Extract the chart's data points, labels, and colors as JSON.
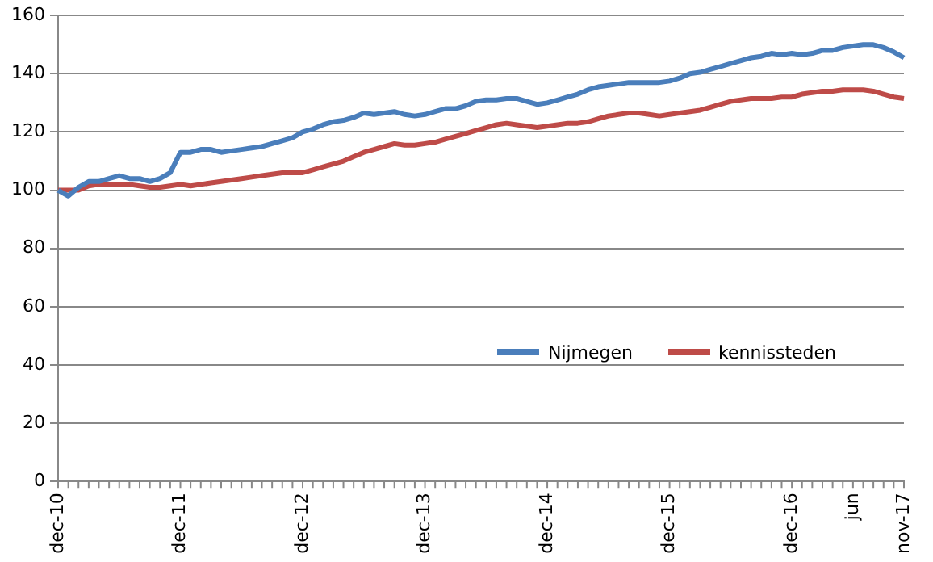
{
  "chart_data": {
    "type": "line",
    "categories": [
      "dec-10",
      null,
      null,
      null,
      null,
      null,
      null,
      null,
      null,
      null,
      null,
      null,
      "dec-11",
      null,
      null,
      null,
      null,
      null,
      null,
      null,
      null,
      null,
      null,
      null,
      "dec-12",
      null,
      null,
      null,
      null,
      null,
      null,
      null,
      null,
      null,
      null,
      null,
      "dec-13",
      null,
      null,
      null,
      null,
      null,
      null,
      null,
      null,
      null,
      null,
      null,
      "dec-14",
      null,
      null,
      null,
      null,
      null,
      null,
      null,
      null,
      null,
      null,
      null,
      "dec-15",
      null,
      null,
      null,
      null,
      null,
      null,
      null,
      null,
      null,
      null,
      null,
      "dec-16",
      null,
      null,
      null,
      null,
      null,
      "jun",
      null,
      null,
      null,
      null,
      "nov-17"
    ],
    "series": [
      {
        "name": "Nijmegen",
        "color": "#4a7ebb",
        "values": [
          100,
          98,
          101,
          103,
          103,
          104,
          105,
          104,
          104,
          103,
          104,
          106,
          113,
          113,
          114,
          114,
          113,
          113.5,
          114,
          114.5,
          115,
          116,
          117,
          118,
          120,
          121,
          122.5,
          123.5,
          124,
          125,
          126.5,
          126,
          126.5,
          127,
          126,
          125.5,
          126,
          127,
          128,
          128,
          129,
          130.5,
          131,
          131,
          131.5,
          131.5,
          130.5,
          129.5,
          130,
          131,
          132,
          133,
          134.5,
          135.5,
          136,
          136.5,
          137,
          137,
          137,
          137,
          137.5,
          138.5,
          140,
          140.5,
          141.5,
          142.5,
          143.5,
          144.5,
          145.5,
          146,
          147,
          146.5,
          147,
          146.5,
          147,
          148,
          148,
          149,
          149.5,
          150,
          150,
          149,
          147.5,
          145.5
        ]
      },
      {
        "name": "kennissteden",
        "color": "#be4b48",
        "values": [
          100,
          100,
          100,
          101.5,
          102,
          102,
          102,
          102,
          101.5,
          101,
          101,
          101.5,
          102,
          101.5,
          102,
          102.5,
          103,
          103.5,
          104,
          104.5,
          105,
          105.5,
          106,
          106,
          106,
          107,
          108,
          109,
          110,
          111.5,
          113,
          114,
          115,
          116,
          115.5,
          115.5,
          116,
          116.5,
          117.5,
          118.5,
          119.5,
          120.5,
          121.5,
          122.5,
          123,
          122.5,
          122,
          121.5,
          122,
          122.5,
          123,
          123,
          123.5,
          124.5,
          125.5,
          126,
          126.5,
          126.5,
          126,
          125.5,
          126,
          126.5,
          127,
          127.5,
          128.5,
          129.5,
          130.5,
          131,
          131.5,
          131.5,
          131.5,
          132,
          132,
          133,
          133.5,
          134,
          134,
          134.5,
          134.5,
          134.5,
          134,
          133,
          132,
          131.5
        ]
      }
    ],
    "ylim": [
      0,
      160
    ],
    "yticks": [
      0,
      20,
      40,
      60,
      80,
      100,
      120,
      140,
      160
    ],
    "grid": "y",
    "legend": "center right",
    "marker": "none",
    "line_style": "solid"
  }
}
